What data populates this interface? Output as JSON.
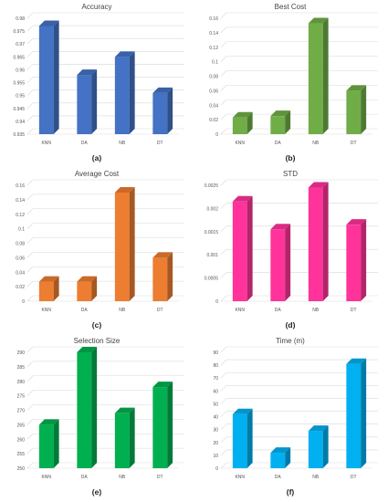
{
  "chart_data": [
    {
      "type": "bar",
      "title": "Accuracy",
      "sublabel": "(a)",
      "categories": [
        "KNN",
        "DA",
        "NB",
        "DT"
      ],
      "values": [
        0.977,
        0.958,
        0.965,
        0.951
      ],
      "ylim": [
        0.935,
        0.98
      ],
      "yticks": [
        0.935,
        0.94,
        0.945,
        0.95,
        0.955,
        0.96,
        0.965,
        0.97,
        0.975,
        0.98
      ],
      "ytick_labels": [
        "0.935",
        "0.94",
        "0.945",
        "0.95",
        "0.955",
        "0.96",
        "0.965",
        "0.97",
        "0.975",
        "0.98"
      ],
      "color": "#4472c4",
      "grid": true
    },
    {
      "type": "bar",
      "title": "Best Cost",
      "sublabel": "(b)",
      "categories": [
        "KNN",
        "DA",
        "NB",
        "DT"
      ],
      "values": [
        0.023,
        0.025,
        0.153,
        0.06
      ],
      "ylim": [
        0,
        0.16
      ],
      "yticks": [
        0,
        0.02,
        0.04,
        0.06,
        0.08,
        0.1,
        0.12,
        0.14,
        0.16
      ],
      "ytick_labels": [
        "0",
        "0.02",
        "0.04",
        "0.06",
        "0.08",
        "0.1",
        "0.12",
        "0.14",
        "0.16"
      ],
      "color": "#70ad47",
      "grid": true
    },
    {
      "type": "bar",
      "title": "Average Cost",
      "sublabel": "(c)",
      "categories": [
        "KNN",
        "DA",
        "NB",
        "DT"
      ],
      "values": [
        0.027,
        0.027,
        0.15,
        0.06
      ],
      "ylim": [
        0,
        0.16
      ],
      "yticks": [
        0,
        0.02,
        0.04,
        0.06,
        0.08,
        0.1,
        0.12,
        0.14,
        0.16
      ],
      "ytick_labels": [
        "0",
        "0.02",
        "0.04",
        "0.06",
        "0.08",
        "0.1",
        "0.12",
        "0.14",
        "0.16"
      ],
      "color": "#ed7d31",
      "grid": true
    },
    {
      "type": "bar",
      "title": "STD",
      "sublabel": "(d)",
      "categories": [
        "KNN",
        "DA",
        "NB",
        "DT"
      ],
      "values": [
        0.00215,
        0.00155,
        0.00245,
        0.00165
      ],
      "ylim": [
        0,
        0.0025
      ],
      "yticks": [
        0,
        0.0005,
        0.001,
        0.0015,
        0.002,
        0.0025
      ],
      "ytick_labels": [
        "0",
        "0.0005",
        "0.001",
        "0.0015",
        "0.002",
        "0.0025"
      ],
      "color": "#ff3399",
      "grid": true
    },
    {
      "type": "bar",
      "title": "Selection Size",
      "sublabel": "(e)",
      "categories": [
        "KNN",
        "DA",
        "NB",
        "DT"
      ],
      "values": [
        265,
        290,
        269,
        278
      ],
      "ylim": [
        250,
        290
      ],
      "yticks": [
        250,
        255,
        260,
        265,
        270,
        275,
        280,
        285,
        290
      ],
      "ytick_labels": [
        "250",
        "255",
        "260",
        "265",
        "270",
        "275",
        "280",
        "285",
        "290"
      ],
      "color": "#00b050",
      "grid": true
    },
    {
      "type": "bar",
      "title": "Time (m)",
      "sublabel": "(f)",
      "categories": [
        "KNN",
        "DA",
        "NB",
        "DT"
      ],
      "values": [
        42,
        12,
        29,
        81
      ],
      "ylim": [
        0,
        90
      ],
      "yticks": [
        0,
        10,
        20,
        30,
        40,
        50,
        60,
        70,
        80,
        90
      ],
      "ytick_labels": [
        "0",
        "10",
        "20",
        "30",
        "40",
        "50",
        "60",
        "70",
        "80",
        "90"
      ],
      "color": "#00b0f0",
      "grid": true
    }
  ]
}
